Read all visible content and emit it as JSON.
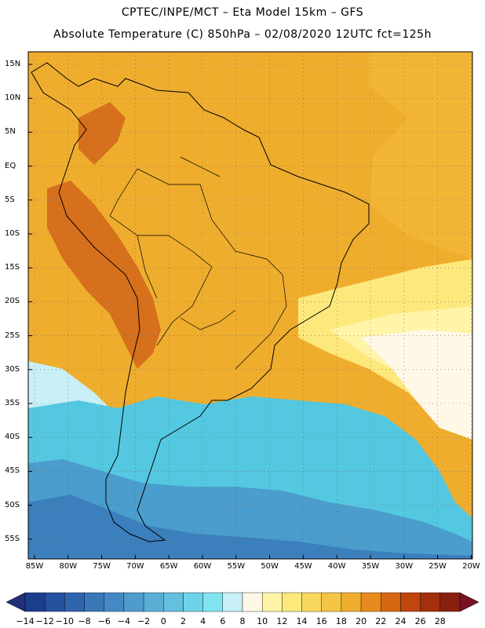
{
  "header": {
    "line1": "CPTEC/INPE/MCT –  Eta Model 15km – GFS",
    "line2": "Absolute Temperature (C) 850hPa – 02/08/2020 12UTC fct=125h"
  },
  "map": {
    "lat_labels": [
      "15N",
      "10N",
      "5N",
      "EQ",
      "5S",
      "10S",
      "15S",
      "20S",
      "25S",
      "30S",
      "35S",
      "40S",
      "45S",
      "50S",
      "55S"
    ],
    "lon_labels": [
      "85W",
      "80W",
      "75W",
      "70W",
      "65W",
      "60W",
      "55W",
      "50W",
      "45W",
      "40W",
      "35W",
      "30W",
      "25W",
      "20W"
    ]
  },
  "colorbar": {
    "labels": [
      "-14",
      "-12",
      "-10",
      "-8",
      "-6",
      "-4",
      "-2",
      "0",
      "2",
      "4",
      "6",
      "8",
      "10",
      "12",
      "14",
      "16",
      "18",
      "20",
      "22",
      "24",
      "26",
      "28"
    ],
    "colors": [
      "#1b3e8c",
      "#25509e",
      "#2f64ad",
      "#3977b9",
      "#4489c3",
      "#4f9bcc",
      "#5aaed6",
      "#63c0df",
      "#6cd3e8",
      "#7fe4ef",
      "#c8f0f6",
      "#fff8e6",
      "#fff4a8",
      "#fde87c",
      "#f9d85e",
      "#f4c444",
      "#efad2e",
      "#e58b1e",
      "#d66712",
      "#bf460e",
      "#a32f0c",
      "#87200c"
    ],
    "left_cap": "#21307a",
    "right_cap": "#7a1025"
  },
  "palette": {
    "warm": "#efad2e",
    "tropical": "#f3b535",
    "andes": "#d6701c",
    "cold_deep": "#3b7fbd",
    "cold_mid": "#4a9dcc",
    "cold_light": "#54c8e0",
    "cool_pale": "#c8f0f6",
    "cream": "#fff8e6",
    "lightyellow": "#fff4a8",
    "yellow": "#fde87c"
  }
}
